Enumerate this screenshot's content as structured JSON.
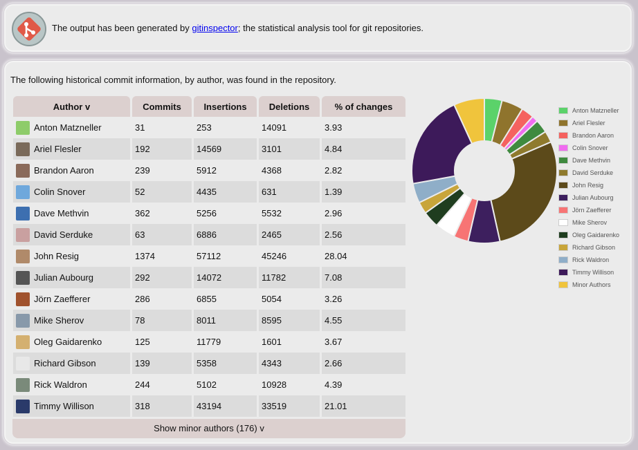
{
  "header": {
    "text_before": "The output has been generated by ",
    "link": "gitinspector",
    "text_after": "; the statistical analysis tool for git repositories."
  },
  "intro": "The following historical commit information, by author, was found in the repository.",
  "table": {
    "columns": [
      "Author v",
      "Commits",
      "Insertions",
      "Deletions",
      "% of changes"
    ],
    "rows": [
      {
        "author": "Anton Matzneller",
        "commits": "31",
        "insertions": "253",
        "deletions": "14091",
        "pct": "3.93",
        "avatar": "#8ecc6a"
      },
      {
        "author": "Ariel Flesler",
        "commits": "192",
        "insertions": "14569",
        "deletions": "3101",
        "pct": "4.84",
        "avatar": "#7a6a5a"
      },
      {
        "author": "Brandon Aaron",
        "commits": "239",
        "insertions": "5912",
        "deletions": "4368",
        "pct": "2.82",
        "avatar": "#8a6a5a"
      },
      {
        "author": "Colin Snover",
        "commits": "52",
        "insertions": "4435",
        "deletions": "631",
        "pct": "1.39",
        "avatar": "#6fa8dc"
      },
      {
        "author": "Dave Methvin",
        "commits": "362",
        "insertions": "5256",
        "deletions": "5532",
        "pct": "2.96",
        "avatar": "#3d6fb0"
      },
      {
        "author": "David Serduke",
        "commits": "63",
        "insertions": "6886",
        "deletions": "2465",
        "pct": "2.56",
        "avatar": "#c9a0a0"
      },
      {
        "author": "John Resig",
        "commits": "1374",
        "insertions": "57112",
        "deletions": "45246",
        "pct": "28.04",
        "avatar": "#b08a6a"
      },
      {
        "author": "Julian Aubourg",
        "commits": "292",
        "insertions": "14072",
        "deletions": "11782",
        "pct": "7.08",
        "avatar": "#555555"
      },
      {
        "author": "Jörn Zaefferer",
        "commits": "286",
        "insertions": "6855",
        "deletions": "5054",
        "pct": "3.26",
        "avatar": "#a0522d"
      },
      {
        "author": "Mike Sherov",
        "commits": "78",
        "insertions": "8011",
        "deletions": "8595",
        "pct": "4.55",
        "avatar": "#8899aa"
      },
      {
        "author": "Oleg Gaidarenko",
        "commits": "125",
        "insertions": "11779",
        "deletions": "1601",
        "pct": "3.67",
        "avatar": "#d4b070"
      },
      {
        "author": "Richard Gibson",
        "commits": "139",
        "insertions": "5358",
        "deletions": "4343",
        "pct": "2.66",
        "avatar": "#e8e8e8"
      },
      {
        "author": "Rick Waldron",
        "commits": "244",
        "insertions": "5102",
        "deletions": "10928",
        "pct": "4.39",
        "avatar": "#7a8a7a"
      },
      {
        "author": "Timmy Willison",
        "commits": "318",
        "insertions": "43194",
        "deletions": "33519",
        "pct": "21.01",
        "avatar": "#2a3a6a"
      }
    ],
    "show_minor_label": "Show minor authors (176) v"
  },
  "chart_data": {
    "type": "pie",
    "style": "donut",
    "legend_position": "right",
    "categories": [
      "Anton Matzneller",
      "Ariel Flesler",
      "Brandon Aaron",
      "Colin Snover",
      "Dave Methvin",
      "David Serduke",
      "John Resig",
      "Julian Aubourg",
      "Jörn Zaefferer",
      "Mike Sherov",
      "Oleg Gaidarenko",
      "Richard Gibson",
      "Rick Waldron",
      "Timmy Willison",
      "Minor Authors"
    ],
    "values": [
      3.93,
      4.84,
      2.82,
      1.39,
      2.96,
      2.56,
      28.04,
      7.08,
      3.26,
      4.55,
      3.67,
      2.66,
      4.39,
      21.01,
      6.84
    ],
    "colors": [
      "#5bd26a",
      "#8f742d",
      "#f5625f",
      "#f06cf0",
      "#3f8a3f",
      "#8f7a2d",
      "#5c4a1a",
      "#3d1f5e",
      "#f77474",
      "#ffffff",
      "#1f3d1f",
      "#c8a53a",
      "#8faec8",
      "#3d1a5a",
      "#f0c43c"
    ]
  }
}
